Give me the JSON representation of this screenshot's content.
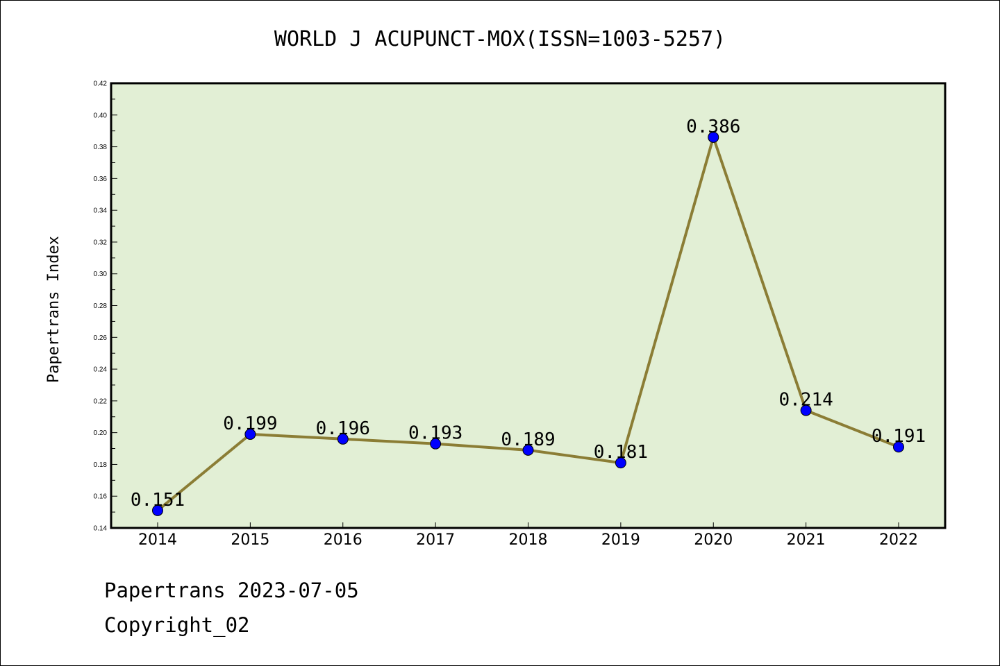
{
  "chart_data": {
    "type": "line",
    "title": "WORLD J ACUPUNCT-MOX(ISSN=1003-5257)",
    "ylabel": "Papertrans Index",
    "xlabel": "",
    "categories": [
      "2014",
      "2015",
      "2016",
      "2017",
      "2018",
      "2019",
      "2020",
      "2021",
      "2022"
    ],
    "series": [
      {
        "values": [
          0.151,
          0.199,
          0.196,
          0.193,
          0.189,
          0.181,
          0.386,
          0.214,
          0.191
        ],
        "labels": [
          "0.151",
          "0.199",
          "0.196",
          "0.193",
          "0.189",
          "0.181",
          "0.386",
          "0.214",
          "0.191"
        ]
      }
    ],
    "ylim": [
      0.14,
      0.42
    ],
    "yticks": [
      "0.14",
      "0.16",
      "0.18",
      "0.20",
      "0.22",
      "0.24",
      "0.26",
      "0.28",
      "0.30",
      "0.32",
      "0.34",
      "0.36",
      "0.38",
      "0.40",
      "0.42"
    ],
    "grid": false,
    "colors": {
      "plot_background": "#e2efd5",
      "line": "#8b7d35",
      "marker": "#0000ff"
    }
  },
  "footer": {
    "line1": "Papertrans 2023-07-05",
    "line2": "Copyright_02"
  }
}
